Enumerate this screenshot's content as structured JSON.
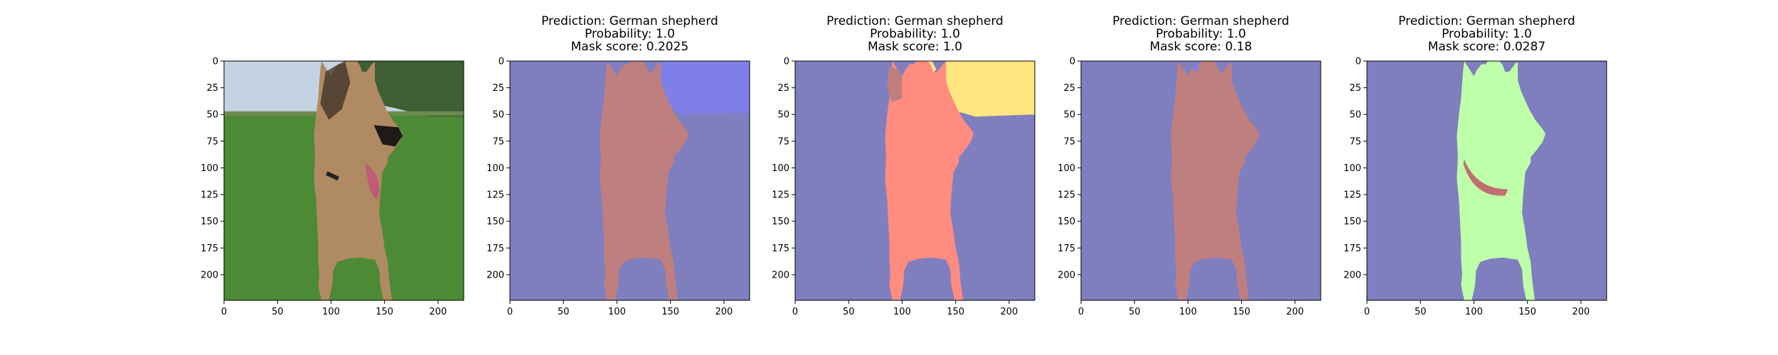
{
  "colors": {
    "background": "#7f7fbf",
    "sky_patch": "#7f7fea",
    "dog_body": "#bf7f7f",
    "dog_body_salmon": "#ff8c7f",
    "yellow_patch": "#ffe680",
    "green_mask": "#bfffaa",
    "tongue": "#c07070",
    "photo_sky": "#c4d3e2",
    "photo_grass": "#4d8a36",
    "photo_trees": "#3e5f34",
    "dog_tan": "#b08a62",
    "dog_dark": "#3a2f27"
  },
  "chart_data": [
    {
      "type": "image",
      "panel": "photo",
      "title": [],
      "xlim": [
        0,
        224
      ],
      "ylim": [
        224,
        0
      ],
      "xticks": [
        0,
        50,
        100,
        150,
        200
      ],
      "yticks": [
        0,
        25,
        50,
        75,
        100,
        125,
        150,
        175,
        200
      ]
    },
    {
      "type": "image",
      "panel": "mask",
      "variant": "mask-a",
      "title": [
        "Prediction: German shepherd",
        "Probability: 1.0",
        "Mask score: 0.2025"
      ],
      "xlim": [
        0,
        224
      ],
      "ylim": [
        224,
        0
      ],
      "xticks": [
        0,
        50,
        100,
        150,
        200
      ],
      "yticks": [
        0,
        25,
        50,
        75,
        100,
        125,
        150,
        175,
        200
      ]
    },
    {
      "type": "image",
      "panel": "mask",
      "variant": "mask-b",
      "title": [
        "Prediction: German shepherd",
        "Probability: 1.0",
        "Mask score: 1.0"
      ],
      "xlim": [
        0,
        224
      ],
      "ylim": [
        224,
        0
      ],
      "xticks": [
        0,
        50,
        100,
        150,
        200
      ],
      "yticks": [
        0,
        25,
        50,
        75,
        100,
        125,
        150,
        175,
        200
      ]
    },
    {
      "type": "image",
      "panel": "mask",
      "variant": "mask-c",
      "title": [
        "Prediction: German shepherd",
        "Probability: 1.0",
        "Mask score: 0.18"
      ],
      "xlim": [
        0,
        224
      ],
      "ylim": [
        224,
        0
      ],
      "xticks": [
        0,
        50,
        100,
        150,
        200
      ],
      "yticks": [
        0,
        25,
        50,
        75,
        100,
        125,
        150,
        175,
        200
      ]
    },
    {
      "type": "image",
      "panel": "mask",
      "variant": "mask-d",
      "title": [
        "Prediction: German shepherd",
        "Probability: 1.0",
        "Mask score: 0.0287"
      ],
      "xlim": [
        0,
        224
      ],
      "ylim": [
        224,
        0
      ],
      "xticks": [
        0,
        50,
        100,
        150,
        200
      ],
      "yticks": [
        0,
        25,
        50,
        75,
        100,
        125,
        150,
        175,
        200
      ]
    }
  ]
}
